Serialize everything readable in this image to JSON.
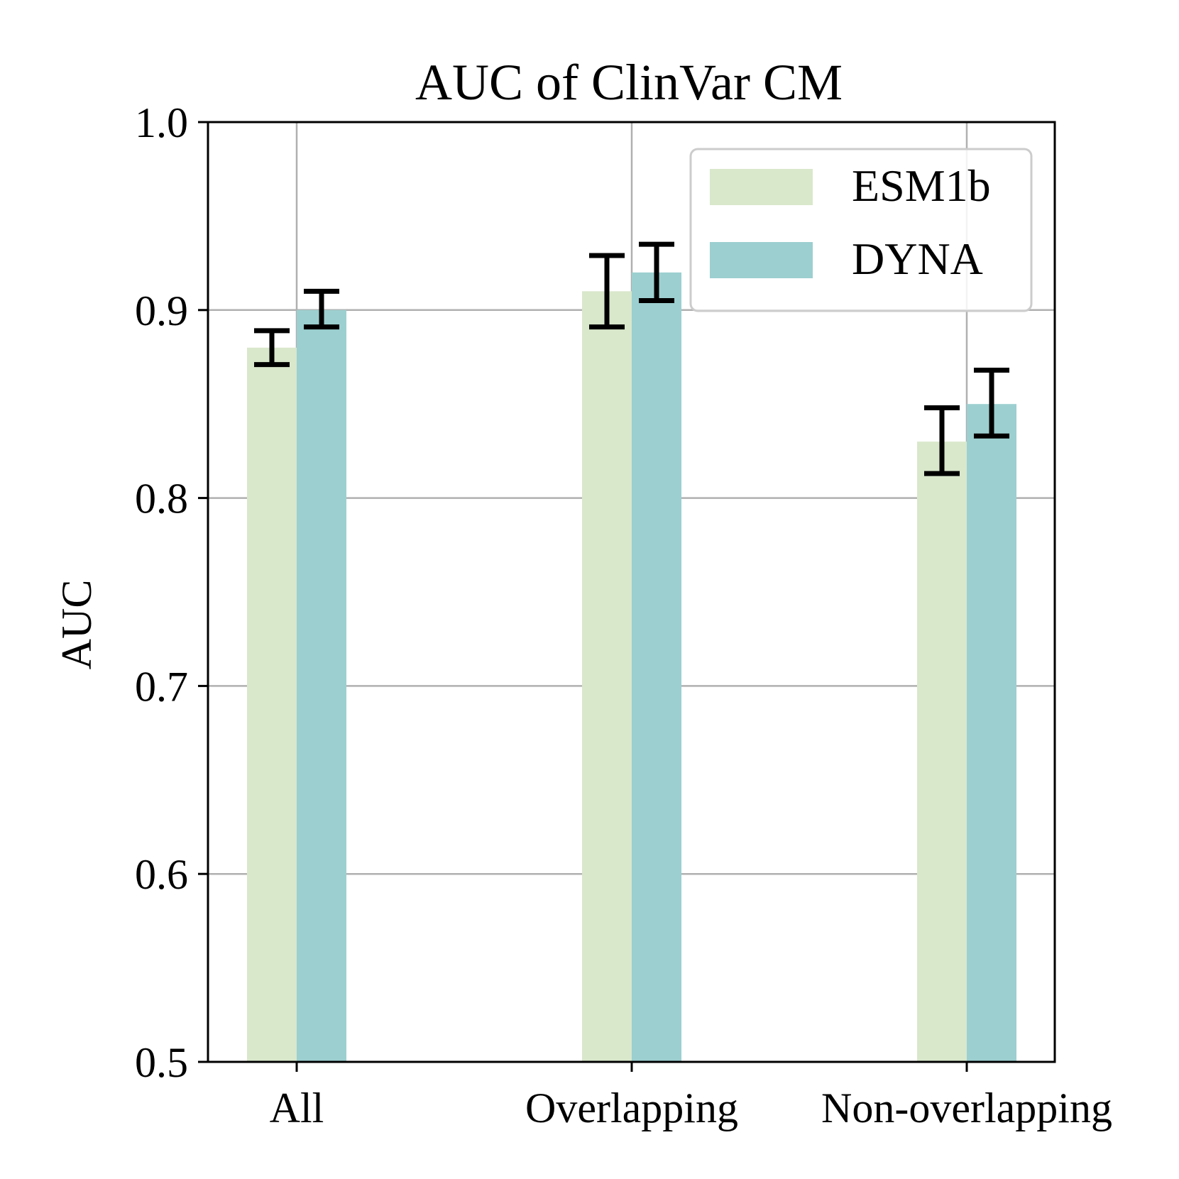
{
  "chart_data": {
    "type": "bar",
    "title": "AUC of ClinVar CM",
    "xlabel": "",
    "ylabel": "AUC",
    "ylim": [
      0.5,
      1.0
    ],
    "yticks": [
      "0.5",
      "0.6",
      "0.7",
      "0.8",
      "0.9",
      "1.0"
    ],
    "categories": [
      "All",
      "Overlapping",
      "Non-overlapping"
    ],
    "grid": true,
    "legend_position": "top-right",
    "series": [
      {
        "name": "ESM1b",
        "values": [
          0.88,
          0.91,
          0.83
        ],
        "err_low": [
          0.871,
          0.891,
          0.813
        ],
        "err_high": [
          0.889,
          0.929,
          0.848
        ],
        "color": "#d9e7cb"
      },
      {
        "name": "DYNA",
        "values": [
          0.9,
          0.92,
          0.85
        ],
        "err_low": [
          0.891,
          0.905,
          0.833
        ],
        "err_high": [
          0.91,
          0.935,
          0.868
        ],
        "color": "#9ccfd0"
      }
    ]
  }
}
